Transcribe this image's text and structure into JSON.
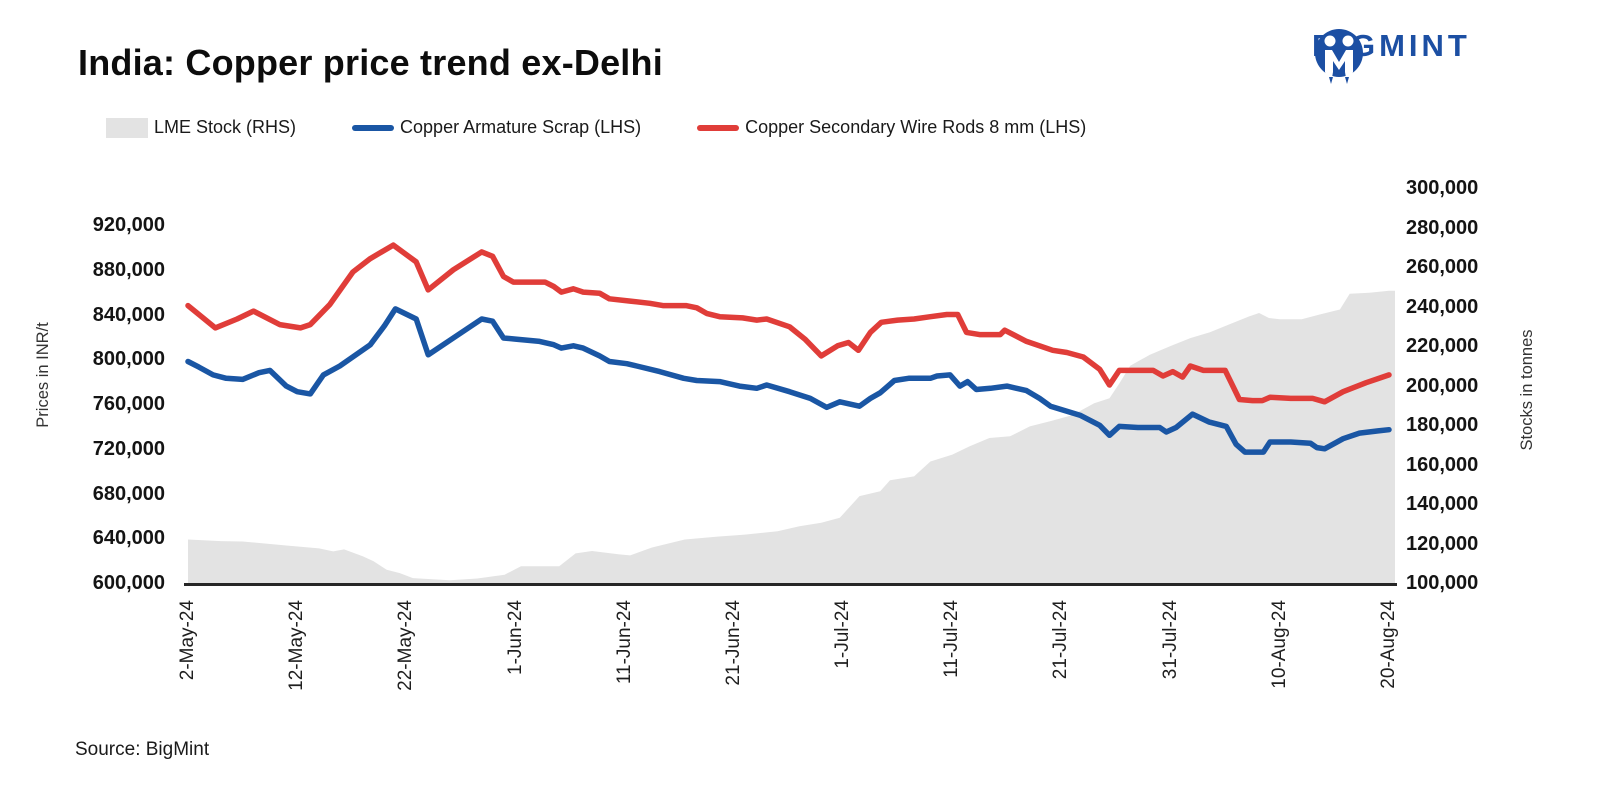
{
  "header": {
    "title": "India: Copper price trend ex-Delhi",
    "brand_name": "BIGMINT"
  },
  "footer": {
    "source": "Source: BigMint"
  },
  "legend": [
    {
      "label": "LME Stock (RHS)",
      "swatch": "area",
      "color": "#e3e3e3"
    },
    {
      "label": "Copper Armature Scrap (LHS)",
      "swatch": "line",
      "color": "#1a56a4"
    },
    {
      "label": "Copper Secondary Wire Rods 8 mm (LHS)",
      "swatch": "line",
      "color": "#e03d39"
    }
  ],
  "chart_data": {
    "type": "combo: area (right axis) + 2 lines (left axis)",
    "title": "India: Copper price trend ex-Delhi",
    "x_unit": "days since 2-May-2024",
    "grid": false,
    "legend_position": "top-left",
    "x_ticks": [
      {
        "day": 0,
        "label": "2-May-24"
      },
      {
        "day": 10,
        "label": "12-May-24"
      },
      {
        "day": 20,
        "label": "22-May-24"
      },
      {
        "day": 30,
        "label": "1-Jun-24"
      },
      {
        "day": 40,
        "label": "11-Jun-24"
      },
      {
        "day": 50,
        "label": "21-Jun-24"
      },
      {
        "day": 60,
        "label": "1-Jul-24"
      },
      {
        "day": 70,
        "label": "11-Jul-24"
      },
      {
        "day": 80,
        "label": "21-Jul-24"
      },
      {
        "day": 90,
        "label": "31-Jul-24"
      },
      {
        "day": 100,
        "label": "10-Aug-24"
      },
      {
        "day": 110,
        "label": "20-Aug-24"
      }
    ],
    "left_axis": {
      "title": "Prices in INR/t",
      "min": 600000,
      "max": 920000,
      "step": 40000,
      "labels": [
        "920,000",
        "880,000",
        "840,000",
        "800,000",
        "760,000",
        "720,000",
        "680,000",
        "640,000",
        "600,000"
      ]
    },
    "right_axis": {
      "title": "Stocks in tonnes",
      "min": 100000,
      "max": 300000,
      "step": 20000,
      "labels": [
        "300,000",
        "280,000",
        "260,000",
        "240,000",
        "220,000",
        "200,000",
        "180,000",
        "160,000",
        "140,000",
        "120,000",
        "100,000"
      ]
    },
    "series": [
      {
        "name": "LME Stock (RHS)",
        "axis": "right",
        "type": "area",
        "color": "#e3e3e3",
        "points": [
          [
            0,
            122000
          ],
          [
            3,
            121200
          ],
          [
            5,
            121000
          ],
          [
            9,
            119000
          ],
          [
            12,
            117500
          ],
          [
            13.3,
            116000
          ],
          [
            14.3,
            117000
          ],
          [
            16,
            113500
          ],
          [
            17,
            111000
          ],
          [
            18.2,
            106700
          ],
          [
            19.4,
            105000
          ],
          [
            20.6,
            102500
          ],
          [
            22,
            102000
          ],
          [
            24,
            101400
          ],
          [
            26.5,
            102300
          ],
          [
            29,
            104200
          ],
          [
            30.5,
            108500
          ],
          [
            34,
            108500
          ],
          [
            35.5,
            115000
          ],
          [
            37,
            116200
          ],
          [
            39.5,
            114500
          ],
          [
            40.5,
            114000
          ],
          [
            42.5,
            118000
          ],
          [
            45.5,
            122000
          ],
          [
            48.5,
            123500
          ],
          [
            51,
            124500
          ],
          [
            54,
            126200
          ],
          [
            56,
            128700
          ],
          [
            58,
            130500
          ],
          [
            59.7,
            133000
          ],
          [
            61.5,
            144000
          ],
          [
            63.4,
            146500
          ],
          [
            64.3,
            152000
          ],
          [
            66.5,
            154000
          ],
          [
            68,
            161500
          ],
          [
            70,
            165000
          ],
          [
            71.6,
            169200
          ],
          [
            73.4,
            173400
          ],
          [
            75.3,
            174300
          ],
          [
            77.1,
            179300
          ],
          [
            79,
            182000
          ],
          [
            81,
            185000
          ],
          [
            83,
            191000
          ],
          [
            84.4,
            193500
          ],
          [
            85.3,
            201000
          ],
          [
            86.3,
            210000
          ],
          [
            88.1,
            215600
          ],
          [
            90,
            220000
          ],
          [
            91.8,
            224000
          ],
          [
            93.6,
            227000
          ],
          [
            95.4,
            231000
          ],
          [
            97.2,
            235000
          ],
          [
            98.1,
            236700
          ],
          [
            99,
            234200
          ],
          [
            100,
            233500
          ],
          [
            102,
            233500
          ],
          [
            103.7,
            236000
          ],
          [
            105.5,
            238500
          ],
          [
            106.4,
            246500
          ],
          [
            108.2,
            247000
          ],
          [
            110,
            248000
          ]
        ]
      },
      {
        "name": "Copper Armature Scrap (LHS)",
        "axis": "left",
        "type": "line",
        "color": "#1a56a4",
        "points": [
          [
            0,
            798000
          ],
          [
            1,
            793000
          ],
          [
            2.3,
            786000
          ],
          [
            3.5,
            783000
          ],
          [
            5,
            782000
          ],
          [
            6.5,
            788000
          ],
          [
            7.5,
            790000
          ],
          [
            9,
            776000
          ],
          [
            10,
            771000
          ],
          [
            11.2,
            769000
          ],
          [
            12.4,
            786000
          ],
          [
            13.9,
            794000
          ],
          [
            16.7,
            813000
          ],
          [
            18,
            830000
          ],
          [
            19,
            845000
          ],
          [
            20.9,
            836000
          ],
          [
            22,
            804000
          ],
          [
            24.3,
            819000
          ],
          [
            26.9,
            836000
          ],
          [
            27.9,
            834000
          ],
          [
            28.9,
            819000
          ],
          [
            30,
            818000
          ],
          [
            32.2,
            816000
          ],
          [
            33.5,
            813000
          ],
          [
            34.2,
            810000
          ],
          [
            35.3,
            812000
          ],
          [
            36.2,
            810000
          ],
          [
            37.7,
            803000
          ],
          [
            38.6,
            798000
          ],
          [
            40.2,
            796000
          ],
          [
            41.1,
            794000
          ],
          [
            43.2,
            789000
          ],
          [
            45.4,
            783000
          ],
          [
            46.6,
            781000
          ],
          [
            48.7,
            780000
          ],
          [
            50.5,
            776000
          ],
          [
            52.1,
            774000
          ],
          [
            53,
            777000
          ],
          [
            55.1,
            771000
          ],
          [
            57,
            765000
          ],
          [
            58.5,
            757000
          ],
          [
            59.7,
            762000
          ],
          [
            61.5,
            758000
          ],
          [
            62.5,
            765000
          ],
          [
            63.4,
            770000
          ],
          [
            64.7,
            781000
          ],
          [
            66,
            783000
          ],
          [
            68,
            783000
          ],
          [
            68.6,
            785000
          ],
          [
            69.8,
            786000
          ],
          [
            70.7,
            776000
          ],
          [
            71.4,
            780000
          ],
          [
            72.2,
            773000
          ],
          [
            73.5,
            774000
          ],
          [
            75,
            776000
          ],
          [
            76.8,
            772000
          ],
          [
            78,
            765000
          ],
          [
            79,
            758000
          ],
          [
            81.7,
            750000
          ],
          [
            83.5,
            741000
          ],
          [
            84.4,
            732000
          ],
          [
            85.3,
            740000
          ],
          [
            87,
            739000
          ],
          [
            89,
            739000
          ],
          [
            89.6,
            735000
          ],
          [
            90.5,
            739000
          ],
          [
            92,
            751000
          ],
          [
            93.5,
            744000
          ],
          [
            95.1,
            740000
          ],
          [
            96,
            724000
          ],
          [
            96.8,
            717000
          ],
          [
            98.5,
            717000
          ],
          [
            99.1,
            726000
          ],
          [
            101,
            726000
          ],
          [
            102.8,
            725000
          ],
          [
            103.4,
            721000
          ],
          [
            104.1,
            720000
          ],
          [
            105.8,
            729000
          ],
          [
            107.3,
            734000
          ],
          [
            109,
            736000
          ],
          [
            110,
            737000
          ]
        ]
      },
      {
        "name": "Copper Secondary Wire Rods 8 mm (LHS)",
        "axis": "left",
        "type": "line",
        "color": "#e03d39",
        "points": [
          [
            0,
            848000
          ],
          [
            1,
            840000
          ],
          [
            2.5,
            828000
          ],
          [
            4.5,
            836000
          ],
          [
            6,
            843000
          ],
          [
            8.4,
            831000
          ],
          [
            10.3,
            828000
          ],
          [
            11.2,
            831000
          ],
          [
            13,
            849000
          ],
          [
            15.1,
            878000
          ],
          [
            16.7,
            890000
          ],
          [
            18.8,
            902000
          ],
          [
            20.9,
            887000
          ],
          [
            22,
            862000
          ],
          [
            24.3,
            880000
          ],
          [
            26.9,
            896000
          ],
          [
            27.9,
            892000
          ],
          [
            28.9,
            874000
          ],
          [
            29.8,
            869000
          ],
          [
            32.7,
            869000
          ],
          [
            33.5,
            865000
          ],
          [
            34.2,
            860000
          ],
          [
            35.3,
            863000
          ],
          [
            36.2,
            860000
          ],
          [
            37.7,
            859000
          ],
          [
            38.6,
            854000
          ],
          [
            40.5,
            852000
          ],
          [
            42.3,
            850000
          ],
          [
            43.5,
            848000
          ],
          [
            45.6,
            848000
          ],
          [
            46.6,
            846000
          ],
          [
            47.5,
            841000
          ],
          [
            48.7,
            838000
          ],
          [
            50.8,
            837000
          ],
          [
            52.1,
            835000
          ],
          [
            53,
            836000
          ],
          [
            55.1,
            829000
          ],
          [
            56.5,
            818000
          ],
          [
            58,
            803000
          ],
          [
            59.5,
            812000
          ],
          [
            60.5,
            815000
          ],
          [
            61.4,
            808000
          ],
          [
            62.5,
            824000
          ],
          [
            63.5,
            833000
          ],
          [
            65,
            835000
          ],
          [
            66.5,
            836000
          ],
          [
            68,
            838000
          ],
          [
            69.5,
            840000
          ],
          [
            70.5,
            840000
          ],
          [
            71.3,
            824000
          ],
          [
            72.5,
            822000
          ],
          [
            74.4,
            822000
          ],
          [
            74.8,
            826000
          ],
          [
            76.8,
            816000
          ],
          [
            79.2,
            808000
          ],
          [
            80.5,
            806000
          ],
          [
            82,
            802000
          ],
          [
            83.5,
            791000
          ],
          [
            84.4,
            777000
          ],
          [
            85.3,
            790000
          ],
          [
            88.4,
            790000
          ],
          [
            89.3,
            785000
          ],
          [
            90.2,
            789000
          ],
          [
            91.1,
            784000
          ],
          [
            91.8,
            794000
          ],
          [
            93,
            790000
          ],
          [
            95,
            790000
          ],
          [
            96.3,
            764000
          ],
          [
            97.5,
            763000
          ],
          [
            98.4,
            763000
          ],
          [
            99.1,
            766000
          ],
          [
            101,
            765000
          ],
          [
            103,
            765000
          ],
          [
            104.1,
            762000
          ],
          [
            105.8,
            771000
          ],
          [
            107.9,
            779000
          ],
          [
            110,
            786000
          ]
        ]
      }
    ]
  }
}
